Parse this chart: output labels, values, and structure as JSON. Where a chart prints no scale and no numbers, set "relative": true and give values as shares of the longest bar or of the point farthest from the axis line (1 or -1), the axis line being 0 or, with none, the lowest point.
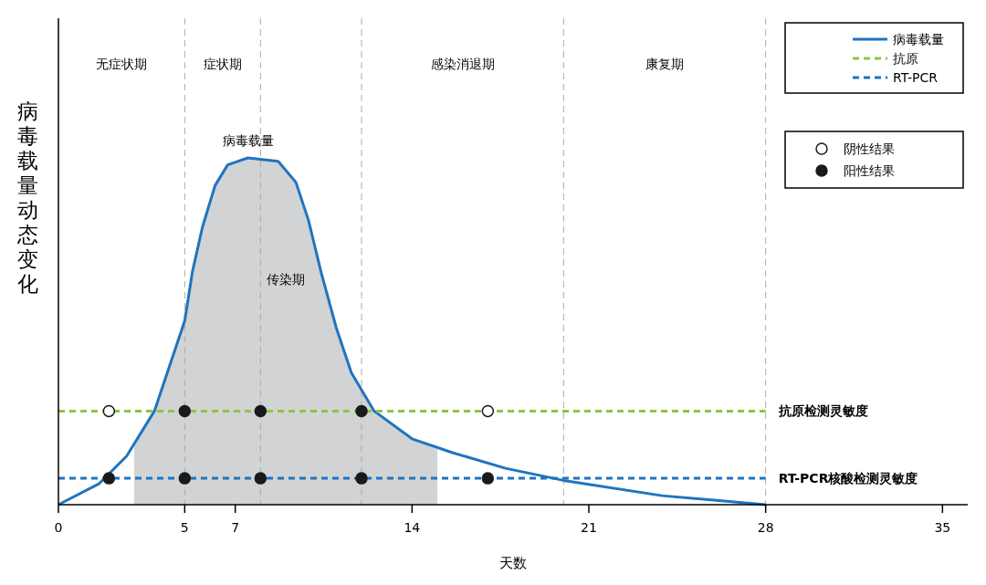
{
  "chart_data": {
    "type": "line",
    "relative": true,
    "xlabel": "天数",
    "ylabel": "病毒载量动态变化",
    "xlim": [
      0,
      36
    ],
    "xticks": [
      0,
      5,
      7,
      14,
      21,
      28,
      35
    ],
    "legend": "top right",
    "grid": false,
    "series": [
      {
        "type": "area",
        "color": "#d1d3d4",
        "x": [
          3,
          3.8,
          4.4,
          5,
          5.3,
          5.7,
          6.2,
          6.7,
          7.5,
          8.7,
          9.4,
          9.9,
          10.4,
          11,
          11.6,
          12.5,
          14,
          15
        ],
        "values": [
          0.17,
          0.27,
          0.4,
          0.53,
          0.67,
          0.8,
          0.92,
          0.98,
          1,
          0.99,
          0.93,
          0.82,
          0.67,
          0.51,
          0.38,
          0.27,
          0.19,
          0.16
        ]
      },
      {
        "name": "病毒载量",
        "color": "#1f74c0",
        "line_style": "solid",
        "x": [
          0,
          1.6,
          2.7,
          3.8,
          4.4,
          5,
          5.3,
          5.7,
          6.2,
          6.7,
          7.5,
          8.7,
          9.4,
          9.9,
          10.4,
          11,
          11.6,
          12.5,
          14,
          15.6,
          17.7,
          20,
          23.9,
          28
        ],
        "values": [
          0,
          0.06,
          0.14,
          0.27,
          0.4,
          0.53,
          0.67,
          0.8,
          0.92,
          0.98,
          1,
          0.99,
          0.93,
          0.82,
          0.67,
          0.51,
          0.38,
          0.27,
          0.19,
          0.15,
          0.105,
          0.07,
          0.026,
          0
        ]
      },
      {
        "name": "抗原",
        "type": "line",
        "color": "#8dc63f",
        "line_style": "dashed",
        "x": [
          0,
          28
        ],
        "values": [
          0.27,
          0.27
        ]
      },
      {
        "name": "RT-PCR",
        "type": "line",
        "color": "#1f74c0",
        "line_style": "dashed",
        "x": [
          0,
          28
        ],
        "values": [
          0.076,
          0.076
        ]
      },
      {
        "name": "阴性结果",
        "type": "scatter",
        "marker": "circle",
        "color": "#ffffff",
        "x": [
          2,
          17
        ],
        "values": [
          0.27,
          0.27
        ]
      },
      {
        "name": "阳性结果",
        "type": "scatter",
        "marker": "circle",
        "color": "#1a1a1a",
        "x": [
          5,
          8,
          12,
          2,
          5,
          8,
          12,
          17
        ],
        "values": [
          0.27,
          0.27,
          0.27,
          0.076,
          0.076,
          0.076,
          0.076,
          0.076
        ]
      }
    ],
    "ref_lines": [
      {
        "axis": "x",
        "value": 5,
        "color": "#aaaaaa",
        "line_style": "dashed"
      },
      {
        "axis": "x",
        "value": 8,
        "color": "#aaaaaa",
        "line_style": "dashed"
      },
      {
        "axis": "x",
        "value": 12,
        "color": "#aaaaaa",
        "line_style": "dashed"
      },
      {
        "axis": "x",
        "value": 20,
        "color": "#aaaaaa",
        "line_style": "dashed"
      },
      {
        "axis": "x",
        "value": 28,
        "color": "#aaaaaa",
        "line_style": "dashed"
      }
    ],
    "annotations": [
      "无症状期",
      "症状期",
      "感染消退期",
      "康复期",
      "病毒载量",
      "传染期",
      {
        "text": "抗原检测灵敏度",
        "x": 28,
        "y": 0.27
      },
      {
        "text": "RT-PCR核酸检测灵敏度",
        "x": 28,
        "y": 0.076
      }
    ]
  }
}
